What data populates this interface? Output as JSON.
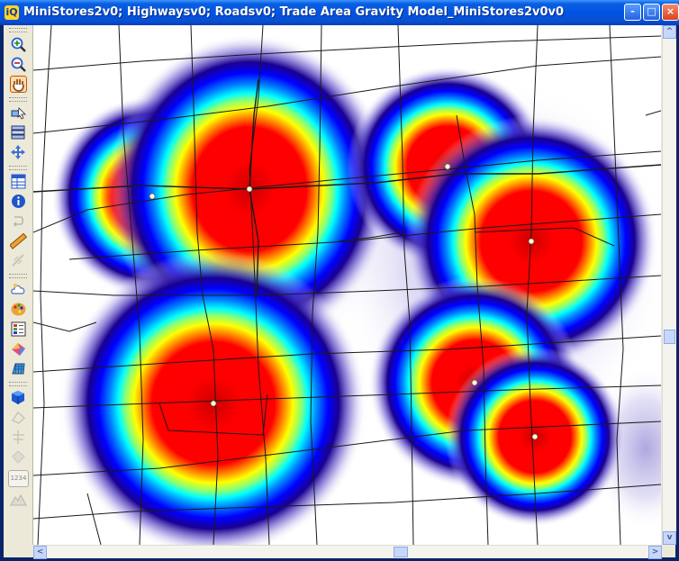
{
  "window": {
    "title": "MiniStores2v0; Highwaysv0; Roadsv0; Trade Area Gravity Model_MiniStores2v0v0",
    "app_icon_glyph": "iQ",
    "controls": {
      "minimize": "-",
      "maximize": "□",
      "close": "×"
    },
    "title_bar_color": "#0054e3"
  },
  "toolbar": {
    "tools": [
      {
        "name": "zoom-in-icon",
        "active": false
      },
      {
        "name": "zoom-out-icon",
        "active": false
      },
      {
        "name": "pan-hand-icon",
        "active": true
      },
      {
        "name": "select-icon",
        "active": false
      },
      {
        "name": "layer-control-icon",
        "active": false
      },
      {
        "name": "move-icon",
        "active": false
      },
      {
        "name": "browser-table-icon",
        "active": false
      },
      {
        "name": "info-icon",
        "active": false
      },
      {
        "name": "hotlink-icon",
        "active": false
      },
      {
        "name": "ruler-icon",
        "active": false
      },
      {
        "name": "label-icon",
        "active": false
      },
      {
        "name": "cloud-icon",
        "active": false
      },
      {
        "name": "palette-icon",
        "active": false
      },
      {
        "name": "legend-icon",
        "active": false
      },
      {
        "name": "thematic-icon",
        "active": false
      },
      {
        "name": "grid-icon",
        "active": false
      },
      {
        "name": "3d-cube-icon",
        "active": false
      },
      {
        "name": "gray-tool-1-icon",
        "active": false
      },
      {
        "name": "gray-tool-2-icon",
        "active": false
      },
      {
        "name": "gray-tool-3-icon",
        "active": false
      },
      {
        "name": "number-tool-icon",
        "active": false
      },
      {
        "name": "terrain-icon",
        "active": false
      }
    ],
    "number_tool_label": "1234"
  },
  "map": {
    "layers": [
      "MiniStores2v0",
      "Highwaysv0",
      "Roadsv0",
      "Trade Area Gravity Model_MiniStores2v0v0"
    ],
    "store_count": 8,
    "ramp_colors": [
      "#ff0000",
      "#ff8000",
      "#ffff00",
      "#00ffff",
      "#0000ff",
      "#000080"
    ]
  },
  "scrollbars": {
    "up_arrow": "^",
    "down_arrow": "v",
    "left_arrow": "<",
    "right_arrow": ">"
  }
}
